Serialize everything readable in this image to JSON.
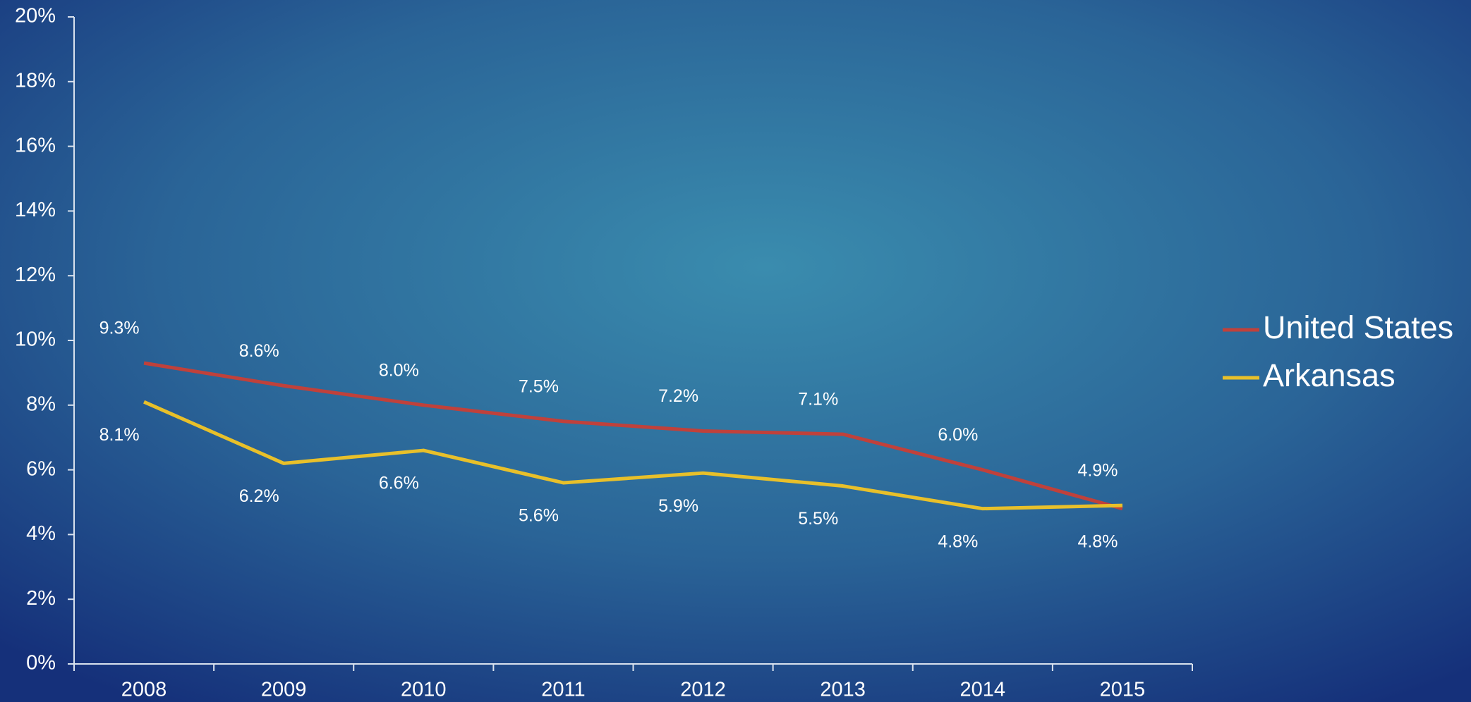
{
  "chart_data": {
    "type": "line",
    "categories": [
      "2008",
      "2009",
      "2010",
      "2011",
      "2012",
      "2013",
      "2014",
      "2015"
    ],
    "series": [
      {
        "name": "United States",
        "color": "#c0413b",
        "values": [
          9.3,
          8.6,
          8.0,
          7.5,
          7.2,
          7.1,
          6.0,
          4.8
        ],
        "value_labels": [
          "9.3%",
          "8.6%",
          "8.0%",
          "7.5%",
          "7.2%",
          "7.1%",
          "6.0%",
          "4.8%"
        ]
      },
      {
        "name": "Arkansas",
        "color": "#e8c02a",
        "values": [
          8.1,
          6.2,
          6.6,
          5.6,
          5.9,
          5.5,
          4.8,
          4.9
        ],
        "value_labels": [
          "8.1%",
          "6.2%",
          "6.6%",
          "5.6%",
          "5.9%",
          "5.5%",
          "4.8%",
          "4.9%"
        ]
      }
    ],
    "ylim": [
      0,
      20
    ],
    "yticks": [
      {
        "value": 0,
        "label": "0%"
      },
      {
        "value": 2,
        "label": "2%"
      },
      {
        "value": 4,
        "label": "4%"
      },
      {
        "value": 6,
        "label": "6%"
      },
      {
        "value": 8,
        "label": "8%"
      },
      {
        "value": 10,
        "label": "10%"
      },
      {
        "value": 12,
        "label": "12%"
      },
      {
        "value": 14,
        "label": "14%"
      },
      {
        "value": 16,
        "label": "16%"
      },
      {
        "value": 18,
        "label": "18%"
      },
      {
        "value": 20,
        "label": "20%"
      }
    ],
    "legend": "right"
  }
}
